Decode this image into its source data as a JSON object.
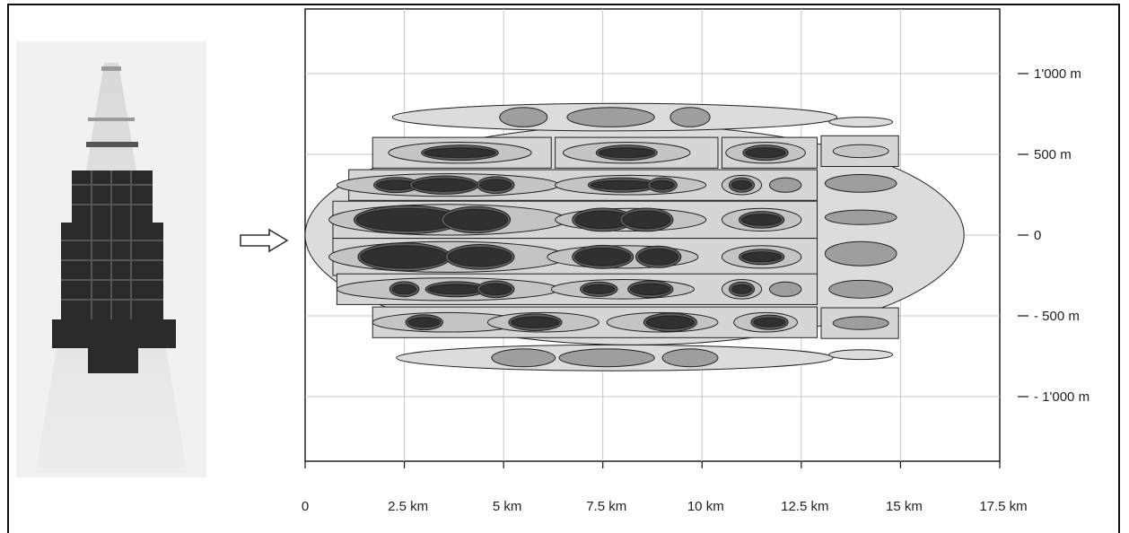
{
  "figure": {
    "munition_description": "",
    "arrow_icon": "right-arrow-icon"
  },
  "chart_data": {
    "type": "diagram",
    "title": "",
    "xlabel": "",
    "ylabel": "",
    "x_ticks": [
      "0",
      "2.5 km",
      "5 km",
      "7.5 km",
      "10 km",
      "12.5 km",
      "15 km",
      "17.5 km"
    ],
    "x_tick_values": [
      0,
      2.5,
      5,
      7.5,
      10,
      12.5,
      15,
      17.5
    ],
    "y_ticks": [
      "1'000 m",
      "500 m",
      "0",
      "- 500 m",
      "- 1'000 m"
    ],
    "y_tick_values": [
      1000,
      500,
      0,
      -500,
      -1000
    ],
    "xlim": [
      0,
      17.5
    ],
    "ylim": [
      -1400,
      1400
    ],
    "grid": true,
    "colors": {
      "envelope": "#dcdcdc",
      "light": "#c4c4c4",
      "medium": "#9e9e9e",
      "dark": "#5e5e5e",
      "core": "#303030",
      "rect": "#d6d6d6"
    },
    "envelope": {
      "cx": 8.3,
      "cy": 0,
      "rx": 8.3,
      "ry": 680
    },
    "rows": [
      {
        "y": 730,
        "rect": null,
        "outer": {
          "cx": 7.8,
          "rx": 5.6,
          "ry": 85
        },
        "blobs": [
          {
            "cx": 5.5,
            "rx": 0.6,
            "ry": 60,
            "shade": "medium"
          },
          {
            "cx": 7.7,
            "rx": 1.1,
            "ry": 60,
            "shade": "medium"
          },
          {
            "cx": 9.7,
            "rx": 0.5,
            "ry": 60,
            "shade": "medium"
          }
        ],
        "cores": []
      },
      {
        "y": 510,
        "rect": {
          "x0": 1.7,
          "x1": 6.2
        },
        "outer": {
          "cx": 3.9,
          "rx": 1.8,
          "ry": 65
        },
        "blobs": [],
        "cores": [
          {
            "cx": 3.9,
            "rx": 0.9,
            "ry": 30
          }
        ]
      },
      {
        "y": 510,
        "rect": {
          "x0": 6.3,
          "x1": 10.4
        },
        "outer": {
          "cx": 8.1,
          "rx": 1.6,
          "ry": 65
        },
        "blobs": [],
        "cores": [
          {
            "cx": 8.1,
            "rx": 0.7,
            "ry": 30
          }
        ]
      },
      {
        "y": 510,
        "rect": {
          "x0": 10.5,
          "x1": 12.9
        },
        "outer": {
          "cx": 11.6,
          "rx": 1.0,
          "ry": 65
        },
        "blobs": [],
        "cores": [
          {
            "cx": 11.6,
            "rx": 0.5,
            "ry": 30
          }
        ]
      },
      {
        "y": 310,
        "rect": {
          "x0": 1.1,
          "x1": 12.9
        },
        "outer": null,
        "blobs": [
          {
            "cx": 3.6,
            "rx": 2.8,
            "ry": 70,
            "shade": "light"
          },
          {
            "cx": 8.2,
            "rx": 1.9,
            "ry": 60,
            "shade": "light"
          },
          {
            "cx": 11.0,
            "rx": 0.5,
            "ry": 60,
            "shade": "light"
          },
          {
            "cx": 12.1,
            "rx": 0.4,
            "ry": 45,
            "shade": "medium"
          }
        ],
        "cores": [
          {
            "cx": 2.3,
            "rx": 0.5,
            "ry": 30
          },
          {
            "cx": 3.5,
            "rx": 0.8,
            "ry": 40
          },
          {
            "cx": 4.8,
            "rx": 0.4,
            "ry": 35
          },
          {
            "cx": 8.0,
            "rx": 0.8,
            "ry": 28
          },
          {
            "cx": 9.0,
            "rx": 0.3,
            "ry": 28
          },
          {
            "cx": 11.0,
            "rx": 0.25,
            "ry": 28
          }
        ]
      },
      {
        "y": 95,
        "rect": {
          "x0": 0.7,
          "x1": 12.9
        },
        "outer": null,
        "blobs": [
          {
            "cx": 3.6,
            "rx": 3.0,
            "ry": 95,
            "shade": "light"
          },
          {
            "cx": 8.2,
            "rx": 1.9,
            "ry": 70,
            "shade": "light"
          },
          {
            "cx": 11.5,
            "rx": 1.0,
            "ry": 70,
            "shade": "light"
          }
        ],
        "cores": [
          {
            "cx": 2.6,
            "rx": 1.3,
            "ry": 70
          },
          {
            "cx": 4.3,
            "rx": 0.8,
            "ry": 65
          },
          {
            "cx": 7.5,
            "rx": 0.7,
            "ry": 55
          },
          {
            "cx": 8.6,
            "rx": 0.6,
            "ry": 55
          },
          {
            "cx": 11.5,
            "rx": 0.5,
            "ry": 35
          }
        ]
      },
      {
        "y": -135,
        "rect": {
          "x0": 0.7,
          "x1": 12.9
        },
        "outer": null,
        "blobs": [
          {
            "cx": 3.6,
            "rx": 3.0,
            "ry": 95,
            "shade": "light"
          },
          {
            "cx": 8.0,
            "rx": 1.9,
            "ry": 70,
            "shade": "light"
          },
          {
            "cx": 11.5,
            "rx": 1.0,
            "ry": 70,
            "shade": "light"
          }
        ],
        "cores": [
          {
            "cx": 2.5,
            "rx": 1.1,
            "ry": 70
          },
          {
            "cx": 4.4,
            "rx": 0.8,
            "ry": 60
          },
          {
            "cx": 7.5,
            "rx": 0.7,
            "ry": 55
          },
          {
            "cx": 8.9,
            "rx": 0.5,
            "ry": 50
          },
          {
            "cx": 11.5,
            "rx": 0.5,
            "ry": 30
          }
        ]
      },
      {
        "y": -335,
        "rect": {
          "x0": 0.8,
          "x1": 12.9
        },
        "outer": null,
        "blobs": [
          {
            "cx": 3.6,
            "rx": 2.8,
            "ry": 70,
            "shade": "light"
          },
          {
            "cx": 8.0,
            "rx": 1.8,
            "ry": 60,
            "shade": "light"
          },
          {
            "cx": 11.0,
            "rx": 0.5,
            "ry": 60,
            "shade": "light"
          },
          {
            "cx": 12.1,
            "rx": 0.4,
            "ry": 45,
            "shade": "medium"
          }
        ],
        "cores": [
          {
            "cx": 2.5,
            "rx": 0.3,
            "ry": 30
          },
          {
            "cx": 3.8,
            "rx": 0.7,
            "ry": 30
          },
          {
            "cx": 4.8,
            "rx": 0.4,
            "ry": 35
          },
          {
            "cx": 7.4,
            "rx": 0.4,
            "ry": 28
          },
          {
            "cx": 8.7,
            "rx": 0.5,
            "ry": 35
          },
          {
            "cx": 11.0,
            "rx": 0.25,
            "ry": 28
          }
        ]
      },
      {
        "y": -540,
        "rect": {
          "x0": 1.7,
          "x1": 12.9
        },
        "outer": null,
        "blobs": [
          {
            "cx": 3.6,
            "rx": 1.9,
            "ry": 60,
            "shade": "light"
          },
          {
            "cx": 6.0,
            "rx": 1.4,
            "ry": 60,
            "shade": "light"
          },
          {
            "cx": 9.0,
            "rx": 1.4,
            "ry": 60,
            "shade": "light"
          },
          {
            "cx": 11.6,
            "rx": 0.8,
            "ry": 60,
            "shade": "light"
          }
        ],
        "cores": [
          {
            "cx": 3.0,
            "rx": 0.4,
            "ry": 30
          },
          {
            "cx": 5.8,
            "rx": 0.6,
            "ry": 35
          },
          {
            "cx": 9.2,
            "rx": 0.6,
            "ry": 40
          },
          {
            "cx": 11.7,
            "rx": 0.4,
            "ry": 28
          }
        ]
      },
      {
        "y": -760,
        "rect": null,
        "outer": {
          "cx": 7.8,
          "rx": 5.5,
          "ry": 80
        },
        "blobs": [
          {
            "cx": 5.5,
            "rx": 0.8,
            "ry": 55,
            "shade": "medium"
          },
          {
            "cx": 7.6,
            "rx": 1.2,
            "ry": 55,
            "shade": "medium"
          },
          {
            "cx": 9.7,
            "rx": 0.7,
            "ry": 55,
            "shade": "medium"
          }
        ],
        "cores": []
      }
    ],
    "tail_column": [
      {
        "y": 700,
        "rx": 0.8,
        "ry": 30,
        "shade": "envelope",
        "rect": false
      },
      {
        "y": 520,
        "rx": 0.7,
        "ry": 40,
        "shade": "light",
        "rect": true
      },
      {
        "y": 320,
        "rx": 0.9,
        "ry": 55,
        "shade": "medium",
        "rect": false
      },
      {
        "y": 110,
        "rx": 0.9,
        "ry": 45,
        "shade": "medium",
        "rect": false
      },
      {
        "y": -115,
        "rx": 0.9,
        "ry": 75,
        "shade": "medium",
        "rect": false
      },
      {
        "y": -335,
        "rx": 0.8,
        "ry": 55,
        "shade": "medium",
        "rect": false
      },
      {
        "y": -545,
        "rx": 0.7,
        "ry": 40,
        "shade": "medium",
        "rect": true
      },
      {
        "y": -740,
        "rx": 0.8,
        "ry": 30,
        "shade": "envelope",
        "rect": false
      }
    ]
  }
}
